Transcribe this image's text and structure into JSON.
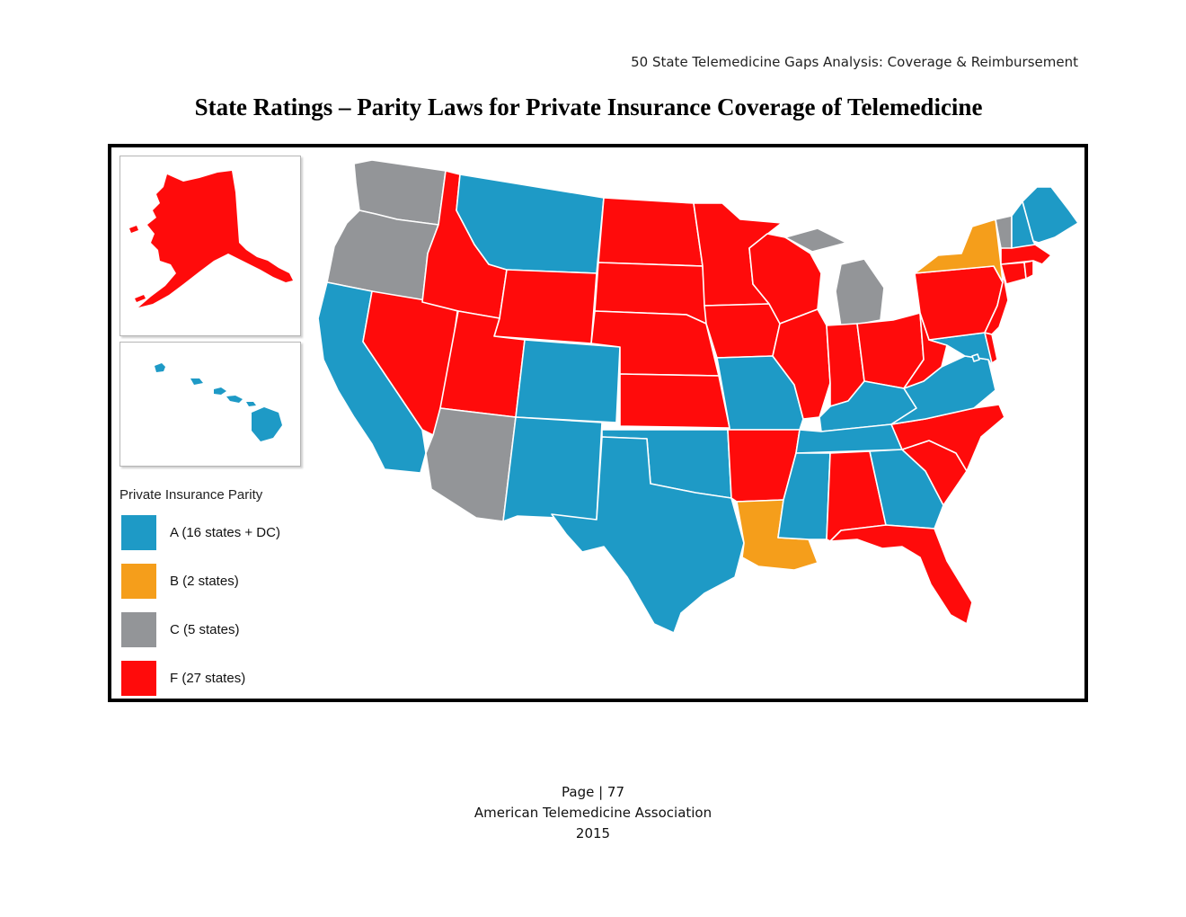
{
  "header": {
    "running_title": "50 State Telemedicine Gaps Analysis:  Coverage & Reimbursement",
    "title": "State Ratings – Parity Laws for Private Insurance Coverage of Telemedicine"
  },
  "colors": {
    "A": "#1e9ac6",
    "B": "#f59e1b",
    "C": "#939598",
    "F": "#ff0b0b"
  },
  "legend": {
    "title": "Private Insurance Parity",
    "items": [
      {
        "grade": "A",
        "label": "A (16 states + DC)"
      },
      {
        "grade": "B",
        "label": "B (2 states)"
      },
      {
        "grade": "C",
        "label": "C (5 states)"
      },
      {
        "grade": "F",
        "label": "F (27 states)"
      }
    ]
  },
  "state_ratings": {
    "WA": "C",
    "OR": "C",
    "CA": "A",
    "NV": "F",
    "ID": "F",
    "MT": "A",
    "WY": "F",
    "UT": "F",
    "AZ": "C",
    "CO": "A",
    "NM": "A",
    "ND": "F",
    "SD": "F",
    "NE": "F",
    "KS": "F",
    "OK": "A",
    "TX": "A",
    "MN": "F",
    "IA": "F",
    "MO": "A",
    "AR": "F",
    "LA": "B",
    "WI": "F",
    "IL": "F",
    "MI": "C",
    "IN": "F",
    "OH": "F",
    "KY": "A",
    "TN": "A",
    "MS": "A",
    "AL": "F",
    "GA": "A",
    "FL": "F",
    "SC": "F",
    "NC": "F",
    "VA": "A",
    "WV": "F",
    "PA": "F",
    "NY": "B",
    "VT": "C",
    "NH": "A",
    "ME": "A",
    "MA": "F",
    "RI": "F",
    "CT": "F",
    "NJ": "F",
    "DE": "F",
    "MD": "A",
    "DC": "A",
    "AK": "F",
    "HI": "A"
  },
  "footer": {
    "page": "Page | 77",
    "organization": "American Telemedicine Association",
    "year": "2015"
  }
}
